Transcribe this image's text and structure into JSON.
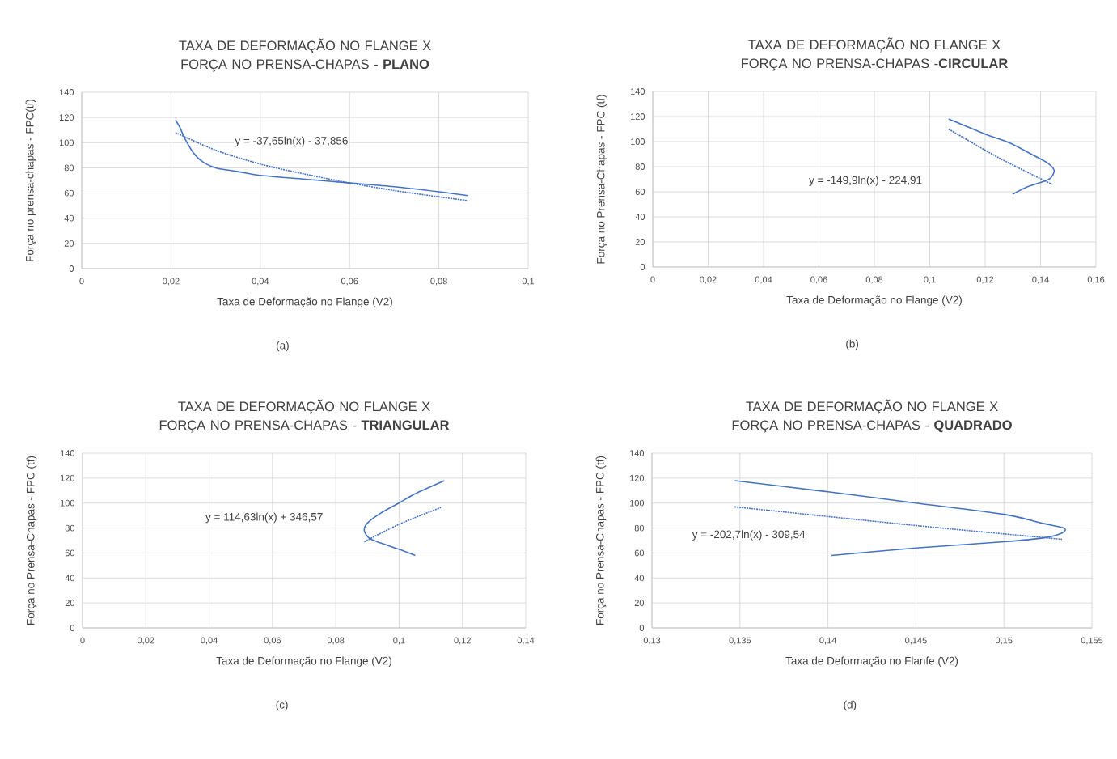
{
  "chart_data": [
    {
      "type": "line",
      "title": "TAXA DE DEFORMAÇÃO NO FLANGE X FORÇA NO PRENSA-CHAPAS - **PLANO**",
      "xlabel": "Taxa de Deformação no Flange (V2)",
      "ylabel": "Força no prensa-chapas - FPC(tf)",
      "xlim": [
        0,
        0.1
      ],
      "xticks": [
        {
          "value": 0,
          "label": "0"
        },
        {
          "value": 0.02,
          "label": "0,02"
        },
        {
          "value": 0.04,
          "label": "0,04"
        },
        {
          "value": 0.06,
          "label": "0,06"
        },
        {
          "value": 0.08,
          "label": "0,08"
        },
        {
          "value": 0.1,
          "label": "0,1"
        }
      ],
      "ylim": [
        0,
        140
      ],
      "yticks": [
        0,
        20,
        40,
        60,
        80,
        100,
        120,
        140
      ],
      "grid": true,
      "marker": "none",
      "series": [
        {
          "color": "#4472c4",
          "line_style": "solid",
          "x": [
            0.021,
            0.022,
            0.023,
            0.025,
            0.027,
            0.03,
            0.035,
            0.04,
            0.05,
            0.06,
            0.07,
            0.08,
            0.0865
          ],
          "values": [
            118,
            112,
            104,
            92,
            85,
            80,
            77,
            74,
            71,
            68,
            65,
            61,
            58
          ]
        },
        {
          "color": "#4472c4",
          "line_style": "dotted",
          "x": [
            0.021,
            0.03,
            0.04,
            0.05,
            0.06,
            0.07,
            0.08,
            0.0865
          ],
          "values": [
            108,
            94,
            83,
            75,
            68,
            62,
            57,
            54
          ]
        }
      ],
      "annotations": [
        "y = -37,65ln(x) - 37,856",
        "(a)"
      ]
    },
    {
      "type": "line",
      "title": "TAXA DE DEFORMAÇÃO NO FLANGE X FORÇA NO PRENSA-CHAPAS -**CIRCULAR**",
      "xlabel": "Taxa de Deformação no Flange (V2)",
      "ylabel": "Força no Prensa-Chapas - FPC (tf)",
      "xlim": [
        0,
        0.16
      ],
      "xticks": [
        {
          "value": 0,
          "label": "0"
        },
        {
          "value": 0.02,
          "label": "0,02"
        },
        {
          "value": 0.04,
          "label": "0,04"
        },
        {
          "value": 0.06,
          "label": "0,06"
        },
        {
          "value": 0.08,
          "label": "0,08"
        },
        {
          "value": 0.1,
          "label": "0,1"
        },
        {
          "value": 0.12,
          "label": "0,12"
        },
        {
          "value": 0.14,
          "label": "0,14"
        },
        {
          "value": 0.16,
          "label": "0,16"
        }
      ],
      "ylim": [
        0,
        140
      ],
      "yticks": [
        0,
        20,
        40,
        60,
        80,
        100,
        120,
        140
      ],
      "grid": true,
      "marker": "none",
      "series": [
        {
          "color": "#4472c4",
          "line_style": "solid",
          "x": [
            0.1068,
            0.12,
            0.1288,
            0.1375,
            0.1425,
            0.1449,
            0.1436,
            0.1408,
            0.1353,
            0.1299
          ],
          "values": [
            118,
            106,
            99,
            89,
            83,
            77,
            71,
            68,
            64,
            58
          ]
        },
        {
          "color": "#4472c4",
          "line_style": "dotted",
          "x": [
            0.1068,
            0.125,
            0.1441
          ],
          "values": [
            110,
            87,
            66
          ]
        }
      ],
      "annotations": [
        "y = -149,9ln(x) - 224,91",
        "(b)"
      ]
    },
    {
      "type": "line",
      "title": "TAXA DE DEFORMAÇÃO NO FLANGE X FORÇA NO PRENSA-CHAPAS - **TRIANGULAR**",
      "xlabel": "Taxa de Deformação no Flange (V2)",
      "ylabel": "Força no Prensa-Chapas - FPC (tf)",
      "xlim": [
        0,
        0.14
      ],
      "xticks": [
        {
          "value": 0,
          "label": "0"
        },
        {
          "value": 0.02,
          "label": "0,02"
        },
        {
          "value": 0.04,
          "label": "0,04"
        },
        {
          "value": 0.06,
          "label": "0,06"
        },
        {
          "value": 0.08,
          "label": "0,08"
        },
        {
          "value": 0.1,
          "label": "0,1"
        },
        {
          "value": 0.12,
          "label": "0,12"
        },
        {
          "value": 0.14,
          "label": "0,14"
        }
      ],
      "ylim": [
        0,
        140
      ],
      "yticks": [
        0,
        20,
        40,
        60,
        80,
        100,
        120,
        140
      ],
      "grid": true,
      "marker": "none",
      "series": [
        {
          "color": "#4472c4",
          "line_style": "solid",
          "x": [
            0.1143,
            0.1055,
            0.0999,
            0.0942,
            0.09,
            0.089,
            0.0905,
            0.0942,
            0.0999,
            0.1051
          ],
          "values": [
            118,
            108,
            100,
            92,
            84,
            78,
            72,
            68,
            63,
            58
          ]
        },
        {
          "color": "#4472c4",
          "line_style": "dotted",
          "x": [
            0.089,
            0.1,
            0.1137
          ],
          "values": [
            69,
            83,
            97
          ]
        }
      ],
      "annotations": [
        "y = 114,63ln(x) + 346,57",
        "(c)"
      ]
    },
    {
      "type": "line",
      "title": "TAXA DE DEFORMAÇÃO NO FLANGE X FORÇA NO PRENSA-CHAPAS - **QUADRADO**",
      "xlabel": "Taxa de Deformação no Flanfe (V2)",
      "ylabel": "Força no Prensa-Chapas - FPC (tf)",
      "xlim": [
        0.13,
        0.155
      ],
      "xticks": [
        {
          "value": 0.13,
          "label": "0,13"
        },
        {
          "value": 0.135,
          "label": "0,135"
        },
        {
          "value": 0.14,
          "label": "0,14"
        },
        {
          "value": 0.145,
          "label": "0,145"
        },
        {
          "value": 0.15,
          "label": "0,15"
        },
        {
          "value": 0.155,
          "label": "0,155"
        }
      ],
      "ylim": [
        0,
        140
      ],
      "yticks": [
        0,
        20,
        40,
        60,
        80,
        100,
        120,
        140
      ],
      "grid": true,
      "marker": "none",
      "series": [
        {
          "color": "#4472c4",
          "line_style": "solid",
          "x": [
            0.1347,
            0.14,
            0.145,
            0.15,
            0.1521,
            0.1534,
            0.1533,
            0.1522,
            0.15,
            0.145,
            0.1402
          ],
          "values": [
            118,
            109,
            100,
            91,
            84,
            80,
            76,
            72,
            69,
            64,
            58
          ]
        },
        {
          "color": "#4472c4",
          "line_style": "dotted",
          "x": [
            0.1347,
            0.145,
            0.1533
          ],
          "values": [
            97,
            82,
            71
          ]
        }
      ],
      "annotations": [
        "y = -202,7ln(x) - 309,54",
        "(d)"
      ]
    }
  ]
}
